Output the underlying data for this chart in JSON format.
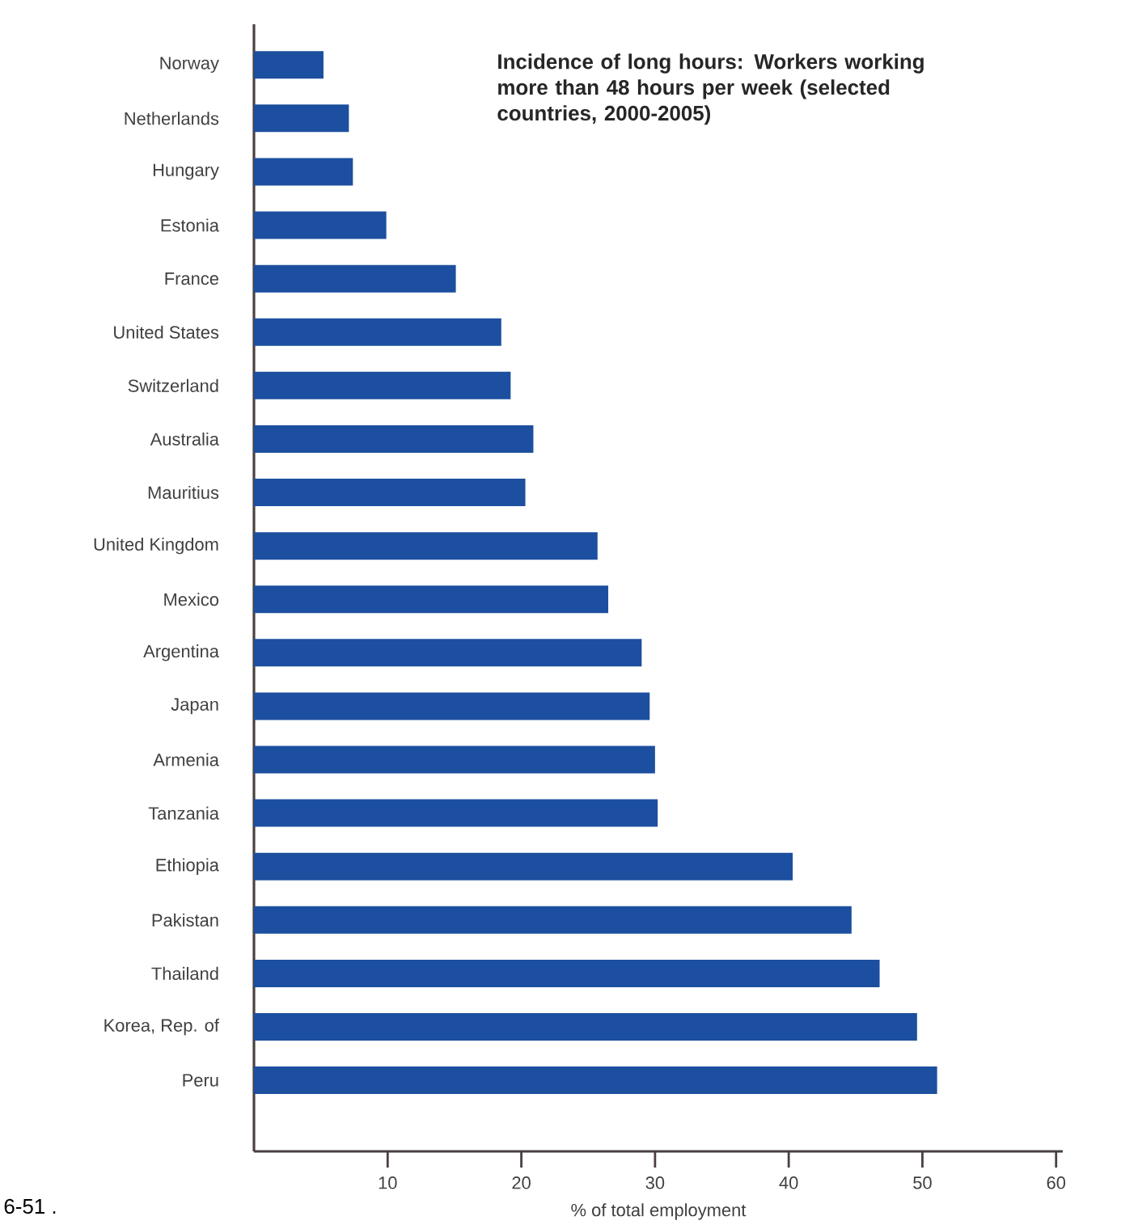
{
  "chart_data": {
    "type": "bar",
    "orientation": "horizontal",
    "title": "Incidence of long hours: Workers working more than 48 hours per week (selected countries, 2000-2005)",
    "xlabel": "% of total employment",
    "annotations": [
      "6-51 ."
    ],
    "categories": [
      "Norway",
      "Netherlands",
      "Hungary",
      "Estonia",
      "France",
      "United States",
      "Switzerland",
      "Australia",
      "Mauritius",
      "United Kingdom",
      "Mexico",
      "Argentina",
      "Japan",
      "Armenia",
      "Tanzania",
      "Ethiopia",
      "Pakistan",
      "Thailand",
      "Korea, Rep. of",
      "Peru"
    ],
    "values": [
      5.2,
      7.1,
      7.4,
      9.9,
      15.1,
      18.5,
      19.2,
      20.9,
      20.3,
      25.7,
      26.5,
      29.0,
      29.6,
      30.0,
      30.2,
      40.3,
      44.7,
      46.8,
      49.6,
      51.1
    ],
    "color": "#1c4f9f",
    "xlim": [
      0,
      60.5
    ],
    "xticks": [
      10,
      20,
      30,
      40,
      50,
      60
    ],
    "grid": false
  }
}
